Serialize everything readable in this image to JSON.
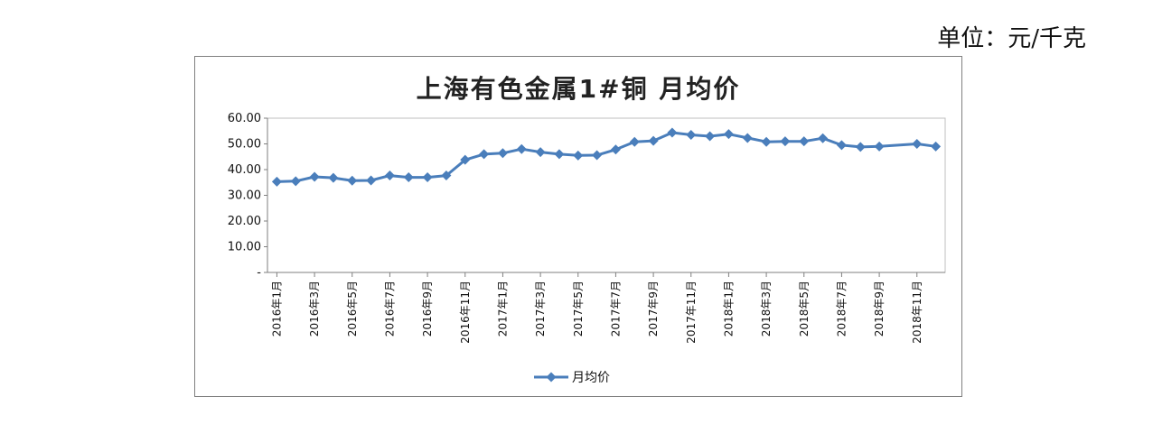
{
  "unit_note": "单位：元/千克",
  "chart_data": {
    "type": "line",
    "title": "上海有色金属1#铜 月均价",
    "xlabel": "",
    "ylabel": "",
    "ylim": [
      0,
      60
    ],
    "yticks": [
      "-",
      "10.00",
      "20.00",
      "30.00",
      "40.00",
      "50.00",
      "60.00"
    ],
    "grid": false,
    "legend": "bottom",
    "categories": [
      "2016年1月",
      "2016年2月",
      "2016年3月",
      "2016年4月",
      "2016年5月",
      "2016年6月",
      "2016年7月",
      "2016年8月",
      "2016年9月",
      "2016年10月",
      "2016年11月",
      "2016年12月",
      "2017年1月",
      "2017年2月",
      "2017年3月",
      "2017年4月",
      "2017年5月",
      "2017年6月",
      "2017年7月",
      "2017年8月",
      "2017年9月",
      "2017年10月",
      "2017年11月",
      "2017年12月",
      "2018年1月",
      "2018年2月",
      "2018年3月",
      "2018年4月",
      "2018年5月",
      "2018年6月",
      "2018年7月",
      "2018年8月",
      "2018年9月",
      "2018年10月",
      "2018年11月",
      "2018年12月"
    ],
    "tick_labels": [
      "2016年1月",
      "2016年3月",
      "2016年5月",
      "2016年7月",
      "2016年9月",
      "2016年11月",
      "2017年1月",
      "2017年3月",
      "2017年5月",
      "2017年7月",
      "2017年9月",
      "2017年11月",
      "2018年1月",
      "2018年3月",
      "2018年5月",
      "2018年7月",
      "2018年9月",
      "2018年11月"
    ],
    "series": [
      {
        "name": "月均价",
        "color": "#4a7ebb",
        "values": [
          35.3,
          35.5,
          37.2,
          36.8,
          35.7,
          35.8,
          37.7,
          37.0,
          37.0,
          37.7,
          43.8,
          46.0,
          46.4,
          48.0,
          46.8,
          46.0,
          45.5,
          45.6,
          47.8,
          50.8,
          51.2,
          54.4,
          53.5,
          53.0,
          53.8,
          52.3,
          50.8,
          51.0,
          51.0,
          52.2,
          49.5,
          48.8,
          49.0,
          null,
          50.0,
          49.0
        ]
      }
    ]
  }
}
